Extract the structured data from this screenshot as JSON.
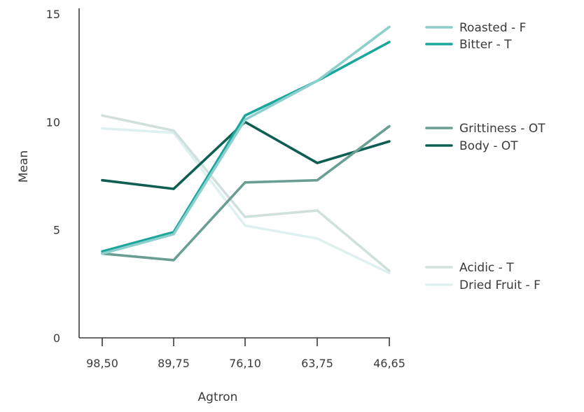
{
  "chart_data": {
    "type": "line",
    "title": "",
    "xlabel": "Agtron",
    "ylabel": "Mean",
    "categories": [
      "98,50",
      "89,75",
      "76,10",
      "63,75",
      "46,65"
    ],
    "ylim": [
      0,
      15
    ],
    "yticks": [
      "0",
      "5",
      "10",
      "15"
    ],
    "grid": false,
    "legend_position": "right",
    "series": [
      {
        "name": "Roasted - F",
        "color": "#8ccfcc",
        "values": [
          3.9,
          4.8,
          10.1,
          11.9,
          14.4
        ]
      },
      {
        "name": "Bitter - T",
        "color": "#1aa69c",
        "values": [
          4.0,
          4.9,
          10.3,
          11.9,
          13.7
        ]
      },
      {
        "name": "Grittiness - OT",
        "color": "#6a9e93",
        "values": [
          3.9,
          3.6,
          7.2,
          7.3,
          9.8
        ]
      },
      {
        "name": "Body - OT",
        "color": "#0f5e54",
        "values": [
          7.3,
          6.9,
          10.0,
          8.1,
          9.1
        ]
      },
      {
        "name": "Acidic - T",
        "color": "#cfe0dd",
        "values": [
          10.3,
          9.6,
          5.6,
          5.9,
          3.1
        ]
      },
      {
        "name": "Dried Fruit - F",
        "color": "#dff0f0",
        "values": [
          9.7,
          9.5,
          5.2,
          4.6,
          3.0
        ]
      }
    ]
  }
}
